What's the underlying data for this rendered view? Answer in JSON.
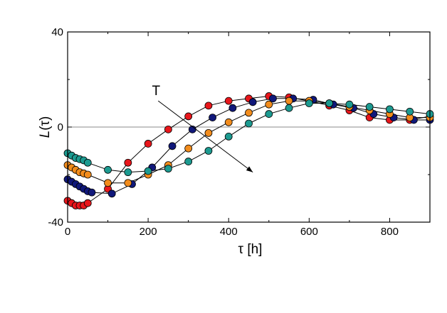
{
  "chart_data": {
    "type": "scatter",
    "title": "",
    "xlabel": "τ [h]",
    "ylabel_main": "L",
    "ylabel_paren": "(τ)",
    "xlim": [
      0,
      900
    ],
    "ylim": [
      -40,
      40
    ],
    "x_ticks": [
      0,
      200,
      400,
      600,
      800
    ],
    "x_tick_labels": [
      "0",
      "200",
      "400",
      "600",
      "800"
    ],
    "y_ticks": [
      -40,
      0,
      40
    ],
    "y_tick_labels": [
      "-40",
      "0",
      "40"
    ],
    "zero_line": 0,
    "annotation": {
      "label": "T",
      "from": [
        225,
        11
      ],
      "to": [
        460,
        -19
      ]
    },
    "series": [
      {
        "name": "red",
        "color": "#e8161b",
        "points": [
          [
            0,
            -31
          ],
          [
            10,
            -32
          ],
          [
            20,
            -33
          ],
          [
            30,
            -33
          ],
          [
            40,
            -33
          ],
          [
            50,
            -32
          ],
          [
            100,
            -26
          ],
          [
            150,
            -15
          ],
          [
            200,
            -7
          ],
          [
            250,
            -1
          ],
          [
            300,
            4.5
          ],
          [
            350,
            9
          ],
          [
            400,
            11
          ],
          [
            450,
            12
          ],
          [
            500,
            13
          ],
          [
            550,
            12.5
          ],
          [
            600,
            11
          ],
          [
            650,
            9
          ],
          [
            700,
            7
          ],
          [
            750,
            4
          ],
          [
            800,
            3
          ],
          [
            850,
            3
          ],
          [
            900,
            4.5
          ]
        ]
      },
      {
        "name": "navy",
        "color": "#10187a",
        "points": [
          [
            0,
            -22
          ],
          [
            10,
            -23
          ],
          [
            20,
            -24
          ],
          [
            30,
            -25
          ],
          [
            40,
            -26
          ],
          [
            50,
            -27
          ],
          [
            60,
            -27.5
          ],
          [
            110,
            -28
          ],
          [
            160,
            -24
          ],
          [
            210,
            -17
          ],
          [
            260,
            -8
          ],
          [
            310,
            -1
          ],
          [
            360,
            4
          ],
          [
            410,
            8
          ],
          [
            460,
            10.5
          ],
          [
            510,
            12
          ],
          [
            560,
            12
          ],
          [
            610,
            11.5
          ],
          [
            660,
            9.5
          ],
          [
            710,
            8
          ],
          [
            760,
            5.5
          ],
          [
            810,
            4
          ],
          [
            860,
            3
          ],
          [
            900,
            3
          ]
        ]
      },
      {
        "name": "orange",
        "color": "#f28c1c",
        "points": [
          [
            0,
            -16
          ],
          [
            10,
            -17
          ],
          [
            20,
            -18
          ],
          [
            30,
            -19
          ],
          [
            40,
            -19.5
          ],
          [
            50,
            -20
          ],
          [
            100,
            -23.5
          ],
          [
            150,
            -23.5
          ],
          [
            200,
            -20
          ],
          [
            250,
            -16
          ],
          [
            300,
            -9
          ],
          [
            350,
            -2.5
          ],
          [
            400,
            2
          ],
          [
            450,
            6
          ],
          [
            500,
            9.5
          ],
          [
            550,
            11
          ],
          [
            600,
            11
          ],
          [
            650,
            10
          ],
          [
            700,
            8.5
          ],
          [
            750,
            7
          ],
          [
            800,
            5.5
          ],
          [
            850,
            4
          ],
          [
            900,
            4
          ]
        ]
      },
      {
        "name": "teal",
        "color": "#1c9a90",
        "points": [
          [
            0,
            -11
          ],
          [
            10,
            -12
          ],
          [
            20,
            -13
          ],
          [
            30,
            -13.5
          ],
          [
            40,
            -14
          ],
          [
            50,
            -15
          ],
          [
            100,
            -18
          ],
          [
            150,
            -19
          ],
          [
            200,
            -18.5
          ],
          [
            250,
            -17.5
          ],
          [
            300,
            -14.5
          ],
          [
            350,
            -10
          ],
          [
            400,
            -4
          ],
          [
            450,
            1.5
          ],
          [
            500,
            5.5
          ],
          [
            550,
            8
          ],
          [
            600,
            10
          ],
          [
            650,
            10
          ],
          [
            700,
            9.5
          ],
          [
            750,
            8.5
          ],
          [
            800,
            7.5
          ],
          [
            850,
            6.5
          ],
          [
            900,
            5.5
          ]
        ]
      }
    ]
  }
}
